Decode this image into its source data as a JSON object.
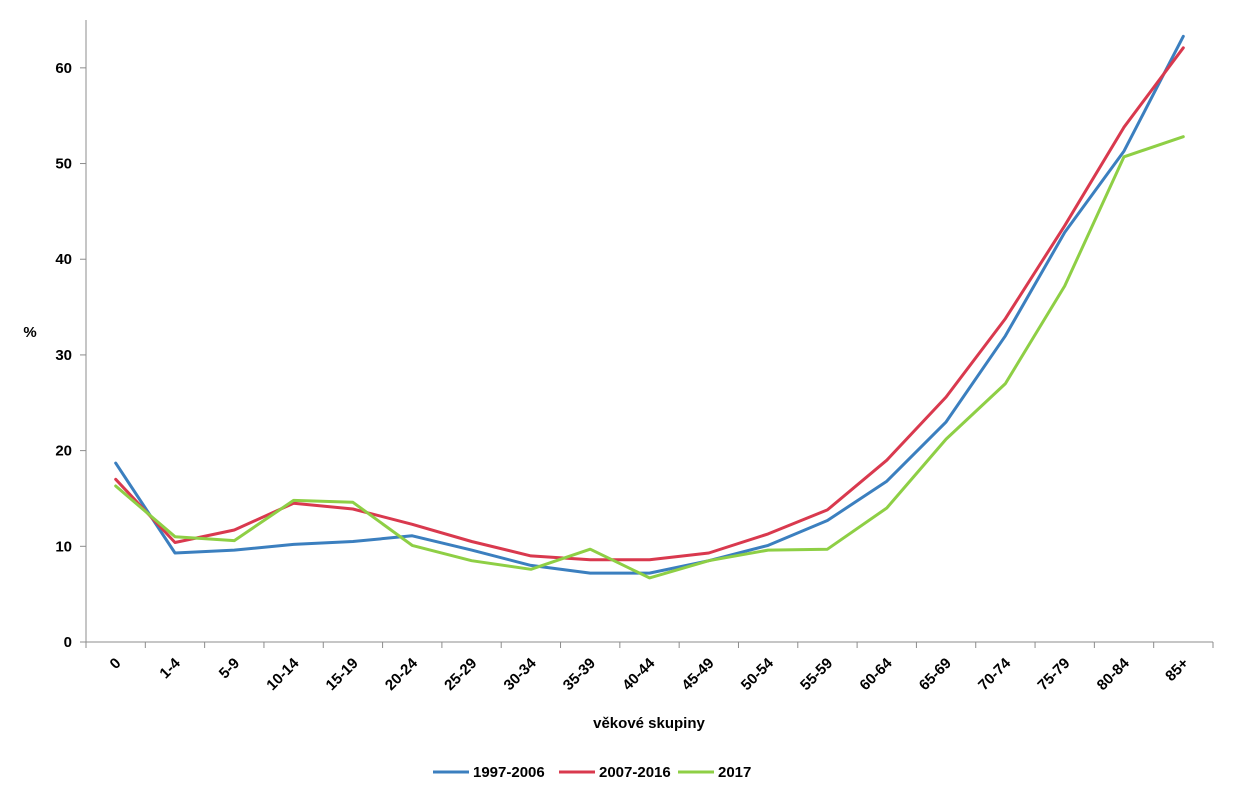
{
  "chart_data": {
    "type": "line",
    "title": "",
    "xlabel": "věkové skupiny",
    "ylabel": "%",
    "ylim": [
      0,
      65
    ],
    "yticks": [
      0,
      10,
      20,
      30,
      40,
      50,
      60
    ],
    "grid": false,
    "legend_position": "bottom",
    "categories": [
      "0",
      "1-4",
      "5-9",
      "10-14",
      "15-19",
      "20-24",
      "25-29",
      "30-34",
      "35-39",
      "40-44",
      "45-49",
      "50-54",
      "55-59",
      "60-64",
      "65-69",
      "70-74",
      "75-79",
      "80-84",
      "85+"
    ],
    "series": [
      {
        "name": "1997-2006",
        "color": "#3b7fbf",
        "values": [
          18.7,
          9.3,
          9.6,
          10.2,
          10.5,
          11.1,
          9.6,
          8.0,
          7.2,
          7.2,
          8.5,
          10.1,
          12.7,
          16.8,
          23.0,
          32.0,
          42.8,
          51.3,
          63.3
        ]
      },
      {
        "name": "2007-2016",
        "color": "#d9394e",
        "values": [
          17.0,
          10.4,
          11.7,
          14.5,
          13.9,
          12.3,
          10.5,
          9.0,
          8.6,
          8.6,
          9.3,
          11.3,
          13.8,
          19.0,
          25.6,
          33.8,
          43.5,
          53.8,
          62.1
        ]
      },
      {
        "name": "2017",
        "color": "#8ecf45",
        "values": [
          16.3,
          11.0,
          10.6,
          14.8,
          14.6,
          10.1,
          8.5,
          7.6,
          9.7,
          6.7,
          8.5,
          9.6,
          9.7,
          14.0,
          21.2,
          27.0,
          37.2,
          50.7,
          52.8
        ]
      }
    ]
  }
}
